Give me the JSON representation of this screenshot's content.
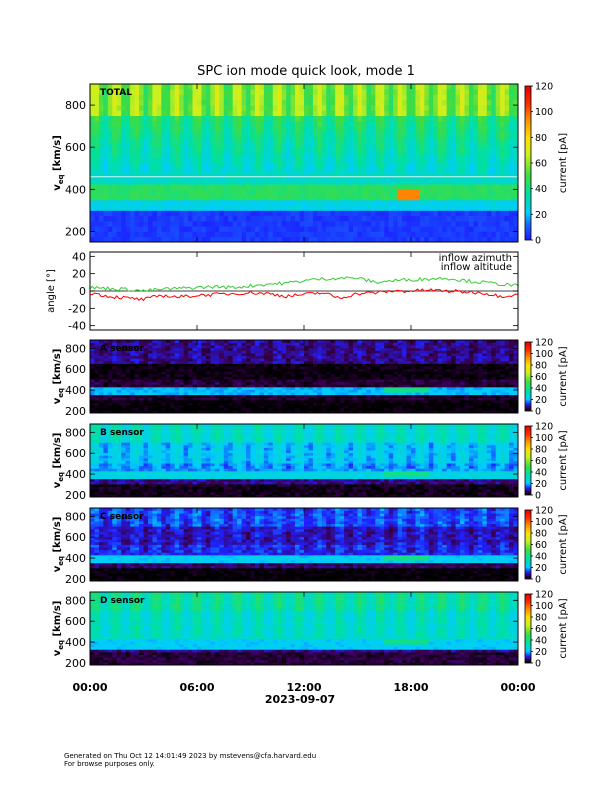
{
  "chart_data": {
    "type": "heatmap",
    "title": "SPC ion mode quick look, mode 1",
    "x_axis": {
      "label": "2023-09-07",
      "ticks": [
        "00:00",
        "06:00",
        "12:00",
        "18:00",
        "00:00"
      ],
      "range_hours": [
        0,
        24
      ]
    },
    "panels": [
      {
        "id": "total",
        "type": "heatmap",
        "label": "TOTAL",
        "ylabel": "v_eq [km/s]",
        "ylabel_main": "v",
        "ylabel_sub": "eq",
        "ylabel_unit": " [km/s]",
        "yticks": [
          200,
          400,
          600,
          800
        ],
        "ylim": [
          150,
          900
        ],
        "colorbar": {
          "label": "current [pA]",
          "ticks": [
            0,
            20,
            40,
            60,
            80,
            100,
            120
          ],
          "range": [
            0,
            120
          ],
          "scale": "rainbow"
        },
        "description_bands": [
          {
            "v_from": 150,
            "v_to": 310,
            "current_pA": 5
          },
          {
            "v_from": 310,
            "v_to": 340,
            "current_pA": 25
          },
          {
            "v_from": 340,
            "v_to": 420,
            "current_pA": 45
          },
          {
            "v_from": 420,
            "v_to": 750,
            "current_pA": 28
          },
          {
            "v_from": 750,
            "v_to": 900,
            "current_pA": 55
          }
        ],
        "hotspot": {
          "hour_from": 17.2,
          "hour_to": 18.6,
          "v_from": 360,
          "v_to": 405,
          "current_pA": 95
        }
      },
      {
        "id": "angle",
        "type": "line",
        "ylabel": "angle [°]",
        "yticks": [
          -40,
          -20,
          0,
          20,
          40
        ],
        "ylim": [
          -45,
          45
        ],
        "series": [
          {
            "name": "inflow azimuth",
            "color": "#ff0000",
            "x": [
              0,
              1,
              2,
              3,
              4,
              5,
              6,
              7,
              8,
              9,
              10,
              11,
              12,
              13,
              14,
              15,
              16,
              17,
              18,
              19,
              20,
              21,
              22,
              23,
              24
            ],
            "y": [
              -2,
              -6,
              -8,
              -10,
              -5,
              -7,
              -5,
              -4,
              -3,
              -2,
              -3,
              -6,
              -4,
              -2,
              -8,
              -3,
              -2,
              0,
              0,
              1,
              0,
              -1,
              -2,
              -6,
              -4
            ]
          },
          {
            "name": "inflow altitude",
            "color": "#33cc33",
            "x": [
              0,
              1,
              2,
              3,
              4,
              5,
              6,
              7,
              8,
              9,
              10,
              11,
              12,
              13,
              14,
              15,
              16,
              17,
              18,
              19,
              20,
              21,
              22,
              23,
              24
            ],
            "y": [
              4,
              3,
              2,
              0,
              2,
              3,
              4,
              5,
              4,
              6,
              8,
              9,
              12,
              14,
              15,
              15,
              10,
              12,
              13,
              14,
              15,
              12,
              10,
              8,
              6
            ]
          }
        ]
      },
      {
        "id": "a_sensor",
        "type": "heatmap",
        "label": "A sensor",
        "ylabel": "v_eq [km/s]",
        "ylabel_main": "v",
        "ylabel_sub": "eq",
        "ylabel_unit": " [km/s]",
        "yticks": [
          200,
          400,
          600,
          800
        ],
        "ylim": [
          180,
          880
        ],
        "colorbar": {
          "label": "current [pA]",
          "ticks": [
            0,
            20,
            40,
            60,
            80,
            100,
            120
          ],
          "range": [
            0,
            120
          ],
          "scale": "rainbow-black"
        }
      },
      {
        "id": "b_sensor",
        "type": "heatmap",
        "label": "B sensor",
        "ylabel": "v_eq [km/s]",
        "ylabel_main": "v",
        "ylabel_sub": "eq",
        "ylabel_unit": " [km/s]",
        "yticks": [
          200,
          400,
          600,
          800
        ],
        "ylim": [
          180,
          880
        ],
        "colorbar": {
          "label": "current [pA]",
          "ticks": [
            0,
            20,
            40,
            60,
            80,
            100,
            120
          ],
          "range": [
            0,
            120
          ],
          "scale": "rainbow-black"
        }
      },
      {
        "id": "c_sensor",
        "type": "heatmap",
        "label": "C sensor",
        "ylabel": "v_eq [km/s]",
        "ylabel_main": "v",
        "ylabel_sub": "eq",
        "ylabel_unit": " [km/s]",
        "yticks": [
          200,
          400,
          600,
          800
        ],
        "ylim": [
          180,
          880
        ],
        "colorbar": {
          "label": "current [pA]",
          "ticks": [
            0,
            20,
            40,
            60,
            80,
            100,
            120
          ],
          "range": [
            0,
            120
          ],
          "scale": "rainbow-black"
        }
      },
      {
        "id": "d_sensor",
        "type": "heatmap",
        "label": "D sensor",
        "ylabel": "v_eq [km/s]",
        "ylabel_main": "v",
        "ylabel_sub": "eq",
        "ylabel_unit": " [km/s]",
        "yticks": [
          200,
          400,
          600,
          800
        ],
        "ylim": [
          180,
          880
        ],
        "colorbar": {
          "label": "current [pA]",
          "ticks": [
            0,
            20,
            40,
            60,
            80,
            100,
            120
          ],
          "range": [
            0,
            120
          ],
          "scale": "rainbow-black"
        }
      }
    ]
  },
  "footer": {
    "line1": "Generated on Thu Oct 12 14:01:49 2023 by mstevens@cfa.harvard.edu",
    "line2": "For browse purposes only."
  }
}
